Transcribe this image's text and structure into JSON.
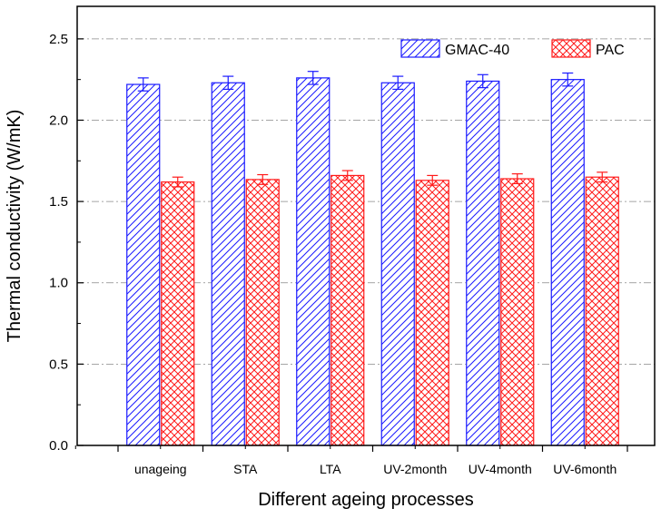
{
  "chart_data": {
    "type": "bar",
    "title": "",
    "xlabel": "Different ageing processes",
    "ylabel": "Thermal conductivity (W/mK)",
    "ylim": [
      0,
      2.7
    ],
    "yticks": [
      "0.0",
      "0.5",
      "1.0",
      "1.5",
      "2.0",
      "2.5"
    ],
    "ytick_values": [
      0,
      0.5,
      1.0,
      1.5,
      2.0,
      2.5
    ],
    "grid": "horizontal dash-dot at major ticks",
    "legend_position": "top-right",
    "categories": [
      "unageing",
      "STA",
      "LTA",
      "UV-2month",
      "UV-4month",
      "UV-6month"
    ],
    "series": [
      {
        "name": "GMAC-40",
        "values": [
          2.22,
          2.23,
          2.26,
          2.23,
          2.24,
          2.25
        ],
        "errors": [
          0.04,
          0.04,
          0.04,
          0.04,
          0.04,
          0.04
        ],
        "color": "#1a1aff",
        "hatch": "diagonal"
      },
      {
        "name": "PAC",
        "values": [
          1.62,
          1.635,
          1.66,
          1.63,
          1.64,
          1.65
        ],
        "errors": [
          0.03,
          0.03,
          0.03,
          0.03,
          0.03,
          0.03
        ],
        "color": "#ff1a1a",
        "hatch": "crosshatch"
      }
    ]
  }
}
